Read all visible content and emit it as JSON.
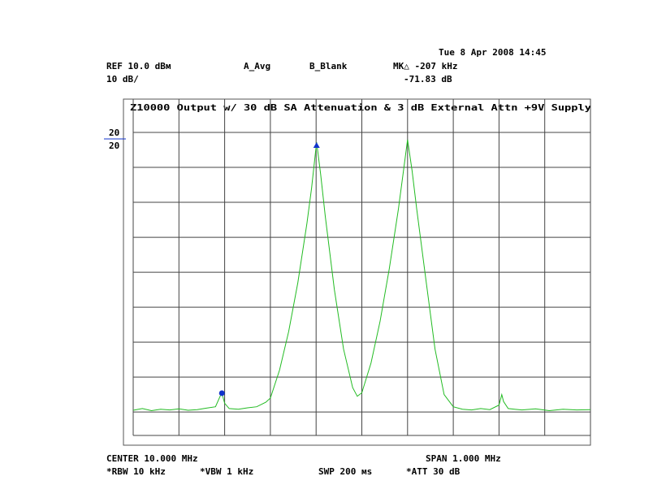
{
  "chart_data": {
    "type": "line",
    "title": "Z10000 Output w/ 30 dB SA Attenuation & 3 dB External Attn +9V Supply",
    "header": {
      "date": "Tue  8 Apr 2008 14:45",
      "ref": "REF 10.0 dBм",
      "scale": "10 dB/",
      "trace_a": "A_Avg",
      "trace_b": "B_Blank",
      "marker_delta": "MK△ -207 kHz",
      "marker_level": "-71.83 dB"
    },
    "display_line_labels": [
      "20",
      "20"
    ],
    "footer": {
      "center": "CENTER 10.000 MHz",
      "span": "SPAN 1.000 MHz",
      "rbw": "*RBW 10 kHz",
      "vbw": "*VBW 1 kHz",
      "sweep": "SWP 200 мs",
      "att": "*ATT 30 dB"
    },
    "x": [
      9.5,
      9.52,
      9.54,
      9.56,
      9.58,
      9.6,
      9.62,
      9.64,
      9.66,
      9.68,
      9.69,
      9.694,
      9.7,
      9.71,
      9.73,
      9.75,
      9.77,
      9.79,
      9.8,
      9.82,
      9.84,
      9.86,
      9.88,
      9.89,
      9.901,
      9.91,
      9.92,
      9.94,
      9.96,
      9.98,
      9.99,
      10.0,
      10.02,
      10.04,
      10.06,
      10.08,
      10.09,
      10.1,
      10.11,
      10.12,
      10.14,
      10.16,
      10.18,
      10.2,
      10.22,
      10.24,
      10.26,
      10.28,
      10.3,
      10.306,
      10.31,
      10.32,
      10.35,
      10.38,
      10.41,
      10.44,
      10.47,
      10.5
    ],
    "series": [
      {
        "color": "#22bb22",
        "values": [
          -69.5,
          -69,
          -69.6,
          -69.2,
          -69.4,
          -69.1,
          -69.5,
          -69.3,
          -68.9,
          -68.5,
          -65.5,
          -64.6,
          -67.5,
          -69,
          -69.2,
          -68.8,
          -68.5,
          -67.2,
          -66,
          -58,
          -47,
          -33,
          -16,
          -6,
          7.2,
          -2,
          -14,
          -35,
          -52,
          -63,
          -65.5,
          -64.5,
          -56,
          -44,
          -29,
          -12,
          -2,
          7.9,
          -1,
          -12,
          -32,
          -52,
          -65,
          -68.5,
          -69.2,
          -69.4,
          -69,
          -69.3,
          -68,
          -65,
          -67,
          -69,
          -69.4,
          -69.1,
          -69.6,
          -69.2,
          -69.4,
          -69.3
        ]
      }
    ],
    "markers": [
      {
        "x": 9.901,
        "y": 7.2,
        "shape": "triangle",
        "color": "#1133cc"
      },
      {
        "x": 9.694,
        "y": -64.6,
        "shape": "circle",
        "color": "#1133cc"
      }
    ],
    "xlim": [
      9.5,
      10.5
    ],
    "xticks": [
      9.5,
      9.6,
      9.7,
      9.8,
      9.9,
      10.0,
      10.1,
      10.2,
      10.3,
      10.4,
      10.5
    ],
    "ylim": [
      -76.7,
      10
    ],
    "yticks": [
      10,
      0,
      -10,
      -20,
      -30,
      -40,
      -50,
      -60,
      -70
    ],
    "grid": true
  }
}
